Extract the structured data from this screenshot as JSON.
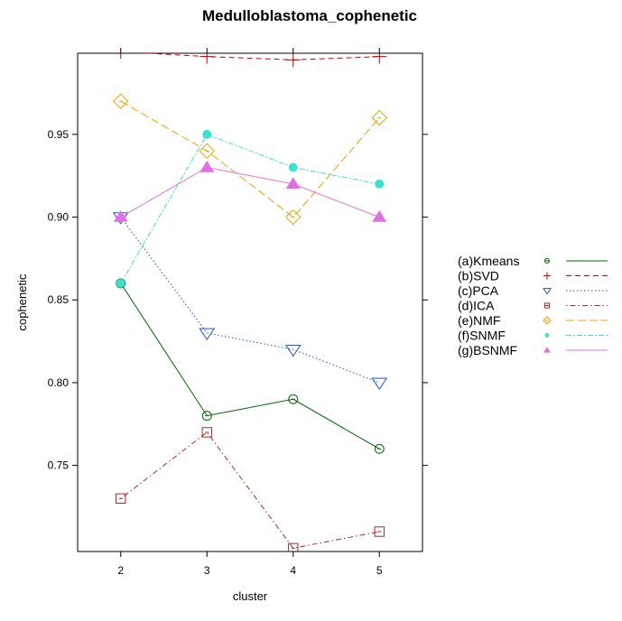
{
  "chart_data": {
    "type": "line",
    "title": "Medulloblastoma_cophenetic",
    "xlabel": "cluster",
    "ylabel": "cophenetic",
    "x": [
      2,
      3,
      4,
      5
    ],
    "x_ticks": [
      "2",
      "3",
      "4",
      "5"
    ],
    "y_ticks": [
      "0.75",
      "0.80",
      "0.85",
      "0.90",
      "0.95"
    ],
    "xlim": [
      1.5,
      5.5
    ],
    "ylim": [
      0.698,
      0.999
    ],
    "grid": false,
    "legend_position": "right",
    "series": [
      {
        "name": "(a)Kmeans",
        "values": [
          0.86,
          0.78,
          0.79,
          0.76
        ],
        "color": "#006400",
        "marker": "circle",
        "dash": "solid"
      },
      {
        "name": "(b)SVD",
        "values": [
          1.0,
          0.997,
          0.995,
          0.997
        ],
        "color": "#cc0000",
        "marker": "plus",
        "dash": "dashed"
      },
      {
        "name": "(c)PCA",
        "values": [
          0.9,
          0.83,
          0.82,
          0.8
        ],
        "color": "#1f4fd6",
        "marker": "triangle-down",
        "dash": "dotted"
      },
      {
        "name": "(d)ICA",
        "values": [
          0.73,
          0.77,
          0.7,
          0.71
        ],
        "color": "#a52a2a",
        "marker": "square",
        "dash": "dotdash"
      },
      {
        "name": "(e)NMF",
        "values": [
          0.97,
          0.94,
          0.9,
          0.96
        ],
        "color": "#f0a000",
        "marker": "diamond",
        "dash": "longdash"
      },
      {
        "name": "(f)SNMF",
        "values": [
          0.86,
          0.95,
          0.93,
          0.92
        ],
        "color": "#3ee0d0",
        "marker": "filled-circle",
        "dash": "twodash"
      },
      {
        "name": "(g)BSNMF",
        "values": [
          0.9,
          0.93,
          0.92,
          0.9
        ],
        "color": "#e070e0",
        "marker": "filled-triangle",
        "dash": "solid"
      }
    ]
  }
}
